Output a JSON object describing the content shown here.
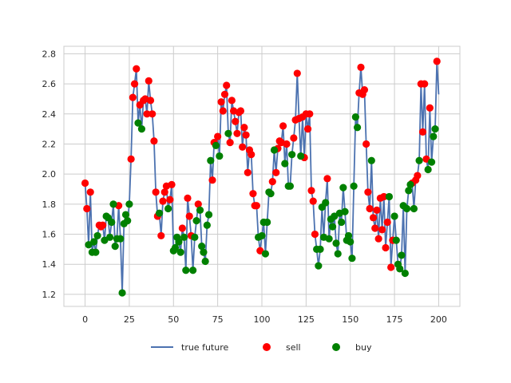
{
  "chart_data": {
    "type": "line",
    "title": "",
    "xlabel": "",
    "ylabel": "",
    "xlim": [
      -12,
      212
    ],
    "ylim": [
      1.12,
      2.85
    ],
    "x_ticks": [
      0,
      25,
      50,
      75,
      100,
      125,
      150,
      175,
      200
    ],
    "y_ticks": [
      1.2,
      1.4,
      1.6,
      1.8,
      2.0,
      2.2,
      2.4,
      2.6,
      2.8
    ],
    "x_tick_labels": [
      "0",
      "25",
      "50",
      "75",
      "100",
      "125",
      "150",
      "175",
      "200"
    ],
    "y_tick_labels": [
      "1.2",
      "1.4",
      "1.6",
      "1.8",
      "2.0",
      "2.2",
      "2.4",
      "2.6",
      "2.8"
    ],
    "grid": true,
    "legend_position": "bottom-center",
    "legend": {
      "line_label": "true future",
      "sell_label": "sell",
      "buy_label": "buy"
    },
    "colors": {
      "line": "#4c72b0",
      "sell": "#ff0000",
      "buy": "#008000",
      "grid": "#cccccc",
      "axes_edge": "#cccccc"
    },
    "series": [
      {
        "name": "true future",
        "values": [
          1.94,
          1.77,
          1.53,
          1.88,
          1.48,
          1.55,
          1.48,
          1.59,
          1.66,
          1.65,
          1.66,
          1.56,
          1.72,
          1.71,
          1.58,
          1.68,
          1.8,
          1.52,
          1.57,
          1.79,
          1.57,
          1.21,
          1.67,
          1.73,
          1.69,
          1.8,
          2.1,
          2.51,
          2.6,
          2.7,
          2.34,
          2.46,
          2.3,
          2.49,
          2.5,
          2.4,
          2.62,
          2.49,
          2.4,
          2.22,
          1.88,
          1.72,
          1.74,
          1.59,
          1.82,
          1.88,
          1.92,
          1.77,
          1.83,
          1.93,
          1.49,
          1.51,
          1.58,
          1.55,
          1.48,
          1.64,
          1.58,
          1.36,
          1.84,
          1.72,
          1.59,
          1.36,
          1.58,
          1.69,
          1.8,
          1.76,
          1.52,
          1.48,
          1.42,
          1.66,
          1.73,
          2.09,
          1.96,
          2.21,
          2.19,
          2.25,
          2.12,
          2.48,
          2.42,
          2.53,
          2.59,
          2.27,
          2.21,
          2.49,
          2.42,
          2.35,
          2.27,
          2.41,
          2.42,
          2.18,
          2.31,
          2.26,
          2.01,
          2.16,
          2.13,
          1.87,
          1.79,
          1.79,
          1.58,
          1.49,
          1.59,
          1.68,
          1.47,
          1.68,
          1.88,
          1.87,
          1.95,
          2.16,
          2.01,
          2.17,
          2.22,
          2.21,
          2.32,
          2.07,
          2.2,
          1.92,
          1.92,
          2.13,
          2.24,
          2.36,
          2.67,
          2.37,
          2.12,
          2.38,
          2.11,
          2.4,
          2.3,
          2.4,
          1.89,
          1.82,
          1.6,
          1.5,
          1.39,
          1.5,
          1.78,
          1.58,
          1.81,
          1.97,
          1.57,
          1.7,
          1.65,
          1.72,
          1.54,
          1.47,
          1.74,
          1.68,
          1.91,
          1.75,
          1.56,
          1.59,
          1.55,
          1.44,
          1.92,
          2.38,
          2.31,
          2.54,
          2.71,
          2.53,
          2.56,
          2.2,
          1.88,
          1.77,
          2.09,
          1.71,
          1.64,
          1.76,
          1.57,
          1.84,
          1.63,
          1.85,
          1.51,
          1.68,
          1.85,
          1.38,
          1.56,
          1.72,
          1.56,
          1.4,
          1.37,
          1.46,
          1.79,
          1.34,
          1.77,
          1.89,
          1.93,
          1.94,
          1.77,
          1.96,
          1.99,
          2.09,
          2.6,
          2.28,
          2.6,
          2.1,
          2.03,
          2.44,
          2.08,
          2.25,
          2.3,
          2.75,
          2.53
        ]
      }
    ],
    "sell_indices": [
      0,
      1,
      3,
      8,
      9,
      10,
      19,
      26,
      27,
      28,
      29,
      31,
      33,
      34,
      35,
      36,
      37,
      38,
      39,
      40,
      41,
      43,
      44,
      45,
      46,
      48,
      49,
      55,
      58,
      59,
      60,
      64,
      72,
      73,
      75,
      77,
      78,
      79,
      80,
      82,
      83,
      84,
      85,
      86,
      87,
      88,
      89,
      90,
      91,
      92,
      93,
      94,
      95,
      96,
      97,
      99,
      106,
      108,
      109,
      110,
      111,
      112,
      114,
      118,
      119,
      120,
      121,
      123,
      124,
      125,
      126,
      127,
      128,
      129,
      130,
      137,
      155,
      156,
      157,
      158,
      159,
      160,
      161,
      163,
      164,
      165,
      166,
      167,
      168,
      169,
      170,
      171,
      173,
      174,
      185,
      187,
      188,
      190,
      191,
      192,
      193,
      195,
      199
    ],
    "buy_indices": [
      2,
      4,
      5,
      6,
      7,
      11,
      12,
      13,
      14,
      15,
      16,
      17,
      18,
      20,
      21,
      22,
      23,
      24,
      25,
      30,
      32,
      42,
      47,
      50,
      51,
      52,
      53,
      54,
      56,
      57,
      61,
      62,
      63,
      65,
      66,
      67,
      68,
      69,
      70,
      71,
      74,
      76,
      81,
      98,
      100,
      101,
      102,
      103,
      104,
      105,
      107,
      113,
      115,
      116,
      117,
      122,
      131,
      132,
      133,
      134,
      135,
      136,
      138,
      139,
      140,
      141,
      142,
      143,
      144,
      145,
      146,
      147,
      148,
      149,
      150,
      151,
      152,
      153,
      154,
      162,
      172,
      175,
      176,
      177,
      178,
      179,
      180,
      181,
      182,
      183,
      184,
      186,
      189,
      194,
      196,
      197,
      198
    ]
  }
}
